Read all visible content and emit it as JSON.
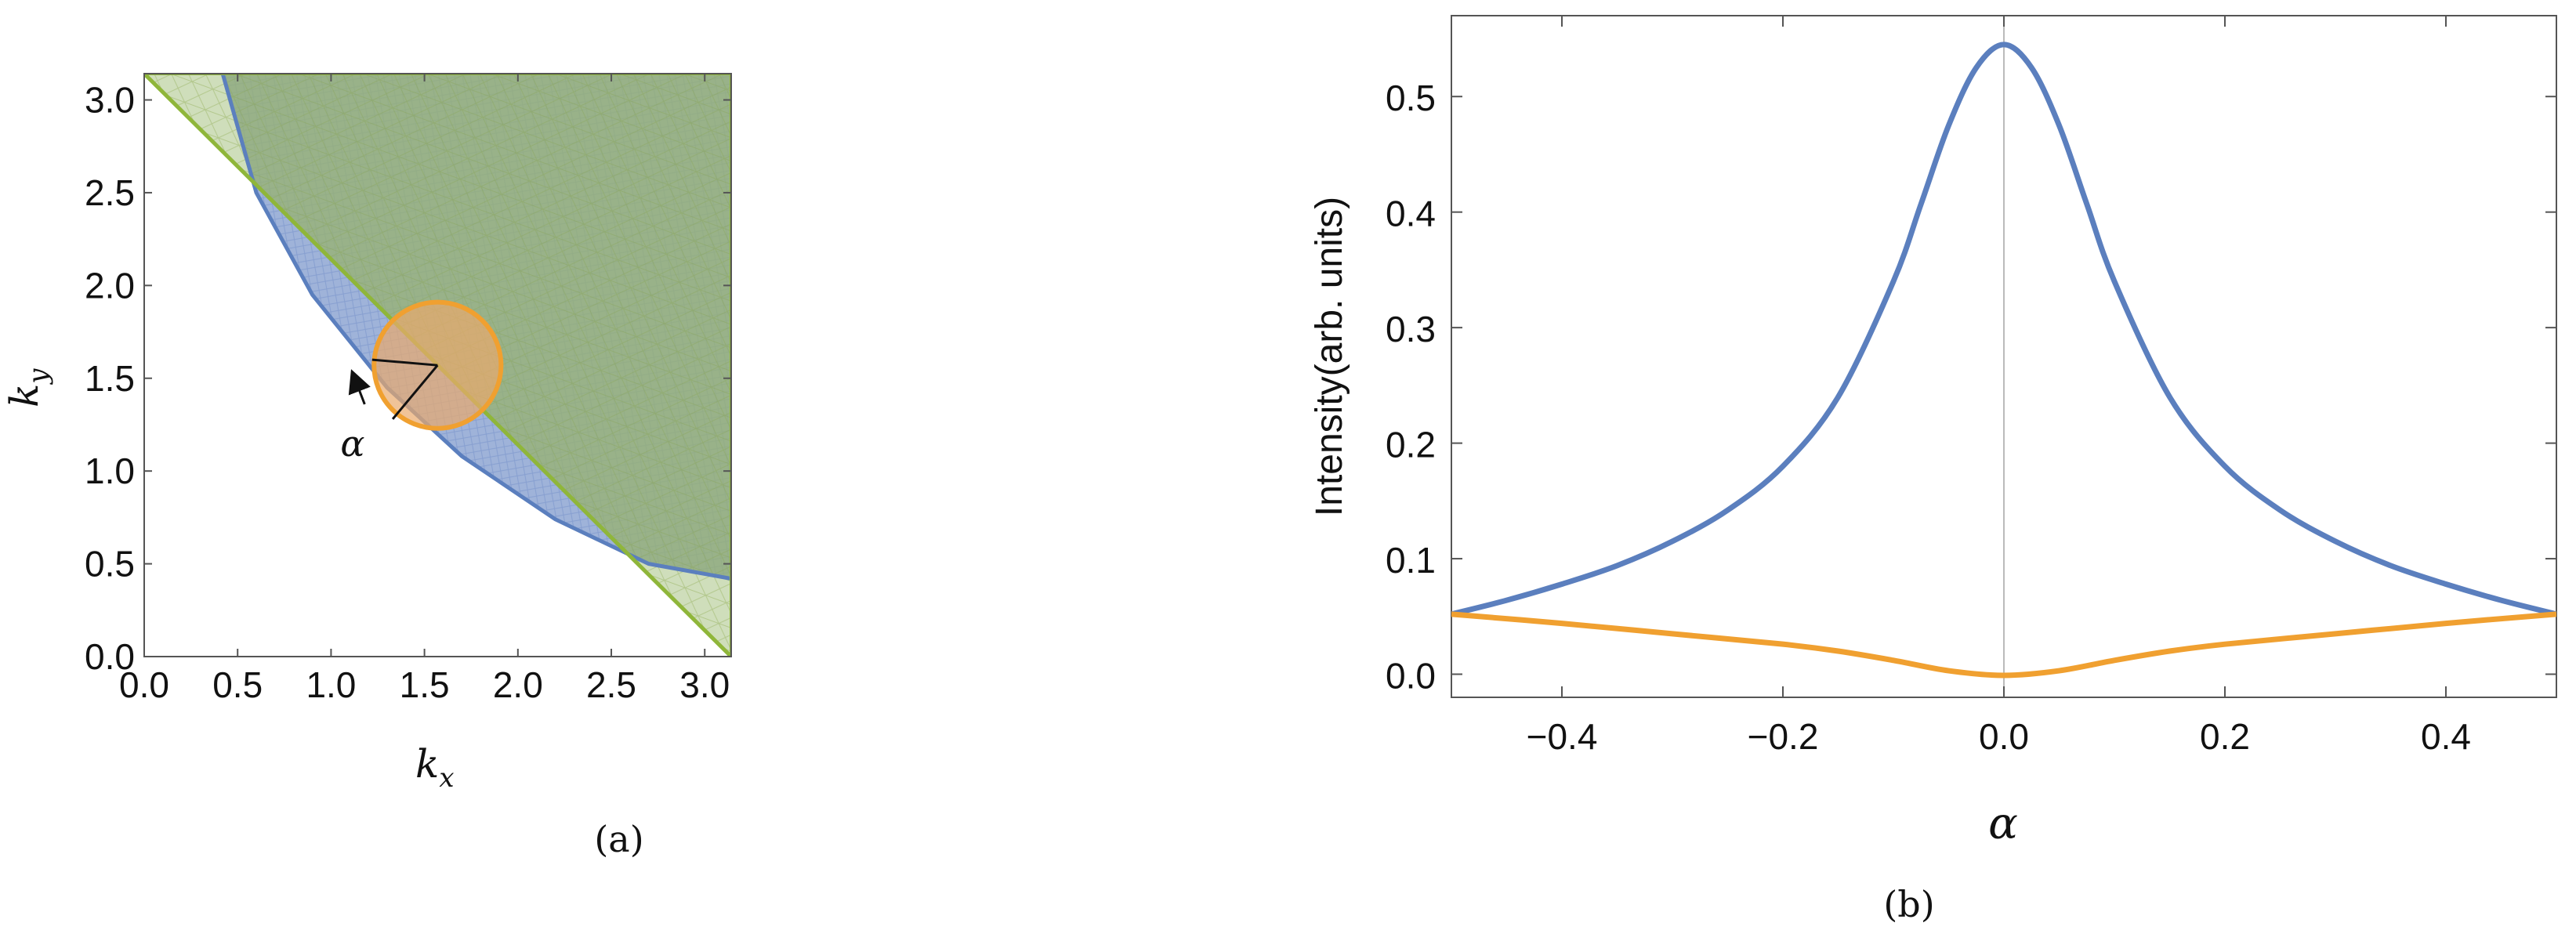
{
  "colors": {
    "blue": "#5b7fbe",
    "blue_fill": "#9fb3d9",
    "green": "#8fb63a",
    "green_fill": "#a8c383",
    "orange": "#f0a030",
    "orange_fill": "#e9a96c",
    "axis": "#555555"
  },
  "chart_data": [
    {
      "type": "region",
      "caption": "(a)",
      "xlabel_var": "k",
      "xlabel_sub": "x",
      "ylabel_var": "k",
      "ylabel_sub": "y",
      "xlim": [
        0,
        3.14159
      ],
      "ylim": [
        0,
        3.14159
      ],
      "xticks": [
        "0.0",
        "0.5",
        "1.0",
        "1.5",
        "2.0",
        "2.5",
        "3.0"
      ],
      "yticks": [
        "0.0",
        "0.5",
        "1.0",
        "1.5",
        "2.0",
        "2.5",
        "3.0"
      ],
      "annotation": "α",
      "regions": [
        {
          "name": "curved region (blue)",
          "boundary": [
            [
              0.42,
              3.14159
            ],
            [
              0.6,
              2.5
            ],
            [
              0.9,
              1.95
            ],
            [
              1.3,
              1.45
            ],
            [
              1.7,
              1.08
            ],
            [
              2.2,
              0.74
            ],
            [
              2.7,
              0.5
            ],
            [
              3.14159,
              0.42
            ]
          ]
        },
        {
          "name": "diagonal region (green)",
          "boundary": [
            [
              0,
              3.14159
            ],
            [
              3.14159,
              0
            ]
          ]
        },
        {
          "name": "circle (orange)",
          "center": [
            1.57,
            1.57
          ],
          "radius": 0.34
        }
      ]
    },
    {
      "type": "line",
      "caption": "(b)",
      "xlabel": "α",
      "ylabel": "Intensity(arb. units)",
      "xlim": [
        -0.5,
        0.5
      ],
      "ylim": [
        -0.02,
        0.57
      ],
      "xticks": [
        "−0.4",
        "−0.2",
        "0.0",
        "0.2",
        "0.4"
      ],
      "yticks": [
        "0.0",
        "0.1",
        "0.2",
        "0.3",
        "0.4",
        "0.5"
      ],
      "series": [
        {
          "color": "blue",
          "x": [
            -0.5,
            -0.45,
            -0.4,
            -0.35,
            -0.3,
            -0.25,
            -0.2,
            -0.15,
            -0.1,
            -0.075,
            -0.05,
            -0.025,
            0,
            0.025,
            0.05,
            0.075,
            0.1,
            0.15,
            0.2,
            0.25,
            0.3,
            0.35,
            0.4,
            0.45,
            0.5
          ],
          "y": [
            0.052,
            0.064,
            0.078,
            0.094,
            0.115,
            0.142,
            0.18,
            0.24,
            0.34,
            0.407,
            0.475,
            0.525,
            0.545,
            0.525,
            0.475,
            0.407,
            0.34,
            0.24,
            0.18,
            0.142,
            0.115,
            0.094,
            0.078,
            0.064,
            0.052
          ]
        },
        {
          "color": "orange",
          "x": [
            -0.5,
            -0.4,
            -0.3,
            -0.2,
            -0.15,
            -0.1,
            -0.05,
            0,
            0.05,
            0.1,
            0.15,
            0.2,
            0.3,
            0.4,
            0.5
          ],
          "y": [
            0.052,
            0.044,
            0.035,
            0.026,
            0.02,
            0.012,
            0.003,
            -0.001,
            0.003,
            0.012,
            0.02,
            0.026,
            0.035,
            0.044,
            0.052
          ]
        }
      ]
    }
  ]
}
